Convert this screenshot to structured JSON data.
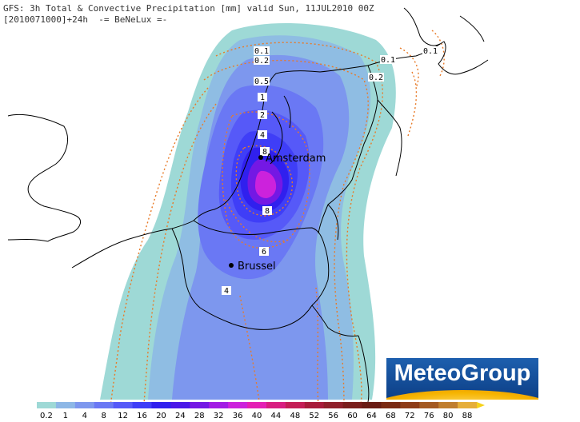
{
  "header": {
    "line1": "GFS: 3h Total & Convective Precipitation [mm] valid Sun, 11JUL2010 00Z",
    "line2": "[2010071000]+24h  -= BeNeLux =-"
  },
  "places": [
    {
      "name": "Amsterdam"
    },
    {
      "name": "Brussel"
    }
  ],
  "contour_labels": [
    "0.1",
    "0.2",
    "0.5",
    "1",
    "2",
    "4",
    "8",
    "8",
    "6",
    "4",
    "0.1",
    "0.2",
    "0.1"
  ],
  "legend": {
    "values": [
      "0.2",
      "1",
      "4",
      "8",
      "12",
      "16",
      "20",
      "24",
      "28",
      "32",
      "36",
      "40",
      "44",
      "48",
      "52",
      "56",
      "60",
      "64",
      "68",
      "72",
      "76",
      "80",
      "88"
    ],
    "colors": [
      "#9ed9d6",
      "#8db7e6",
      "#7d97ee",
      "#6a78f4",
      "#5659f8",
      "#3f3ef7",
      "#3020ee",
      "#4a18e8",
      "#7418e4",
      "#a21ce4",
      "#cc22dc",
      "#e420b4",
      "#d81e80",
      "#c41e56",
      "#a81c3a",
      "#90202a",
      "#7a1e1c",
      "#6a1c14",
      "#7a2a14",
      "#8e3c18",
      "#a45a22",
      "#c07e2e",
      "#e6ae3a"
    ]
  },
  "brand": {
    "logo_text": "MeteoGroup"
  }
}
